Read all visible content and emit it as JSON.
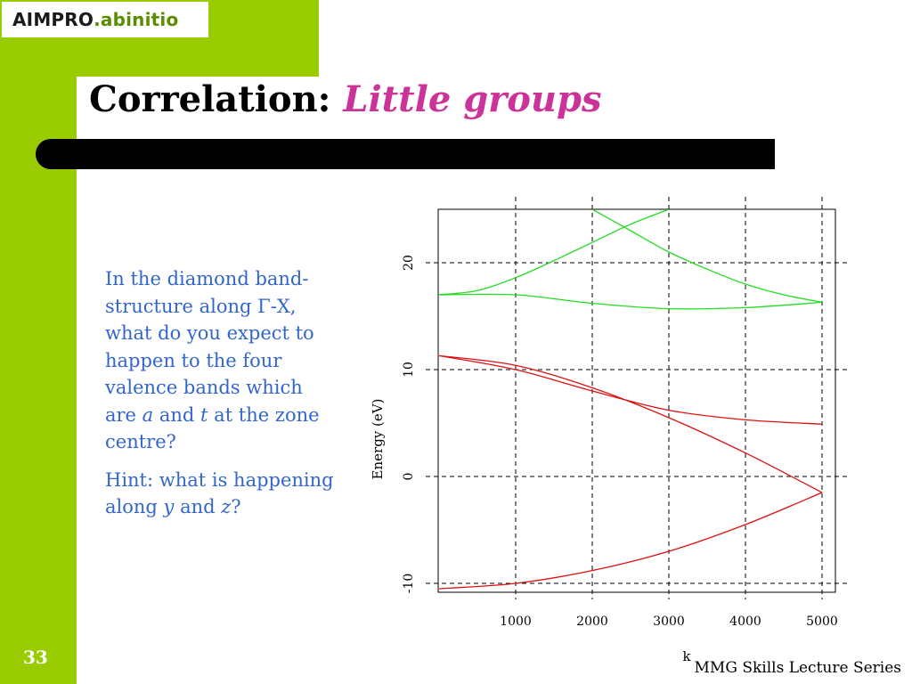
{
  "logo": {
    "part1": "AIMPRO",
    "part2": ".abinitio"
  },
  "title": {
    "prefix": "Correlation: ",
    "accent": "Little groups"
  },
  "body": {
    "p1_before": "In the diamond band-structure along Γ-X, what do you expect to happen to the four valence bands which are ",
    "p1_a": "a",
    "p1_and": " and ",
    "p1_t": "t",
    "p1_after": " at the zone centre?",
    "p2_before": "Hint: what is happening along ",
    "p2_y": "y",
    "p2_and": " and ",
    "p2_z": "z",
    "p2_after": "?"
  },
  "page_number": "33",
  "footer": "MMG Skills Lecture Series",
  "colors": {
    "green": "#99cc00",
    "accent": "#cc3399",
    "text_blue": "#3366cc",
    "band_red": "#dd1111",
    "band_green": "#22dd22"
  },
  "chart_data": {
    "type": "line",
    "xlabel": "k",
    "ylabel": "Energy (eV)",
    "xlim": [
      0,
      5000
    ],
    "ylim": [
      -11,
      25
    ],
    "xticks": [
      1000,
      2000,
      3000,
      4000,
      5000
    ],
    "yticks": [
      -10,
      0,
      10,
      20
    ],
    "grid": true,
    "series": [
      {
        "color": "#22dd22",
        "x": [
          0,
          1000,
          2000,
          3000,
          4000,
          5000
        ],
        "values": [
          17.0,
          17.0,
          16.2,
          15.7,
          15.8,
          16.3
        ]
      },
      {
        "color": "#22dd22",
        "x": [
          0,
          500,
          1000,
          1500,
          2000,
          2500,
          3000
        ],
        "values": [
          17.0,
          17.4,
          18.6,
          20.2,
          21.9,
          23.6,
          25.0
        ]
      },
      {
        "color": "#22dd22",
        "x": [
          2000,
          2500,
          3000,
          3500,
          4000,
          4500,
          5000
        ],
        "values": [
          25.0,
          23.0,
          21.0,
          19.4,
          18.0,
          17.0,
          16.3
        ]
      },
      {
        "color": "#dd1111",
        "x": [
          0,
          1000,
          2000,
          3000,
          4000,
          5000
        ],
        "values": [
          11.3,
          10.0,
          8.0,
          6.2,
          5.3,
          4.9
        ]
      },
      {
        "color": "#dd1111",
        "x": [
          0,
          1000,
          2000,
          3000,
          4000,
          5000
        ],
        "values": [
          11.3,
          10.4,
          8.3,
          5.5,
          2.2,
          -1.5
        ]
      },
      {
        "color": "#dd1111",
        "x": [
          0,
          1000,
          2000,
          3000,
          4000,
          5000
        ],
        "values": [
          -10.5,
          -10.0,
          -8.8,
          -7.0,
          -4.5,
          -1.5
        ]
      }
    ]
  }
}
